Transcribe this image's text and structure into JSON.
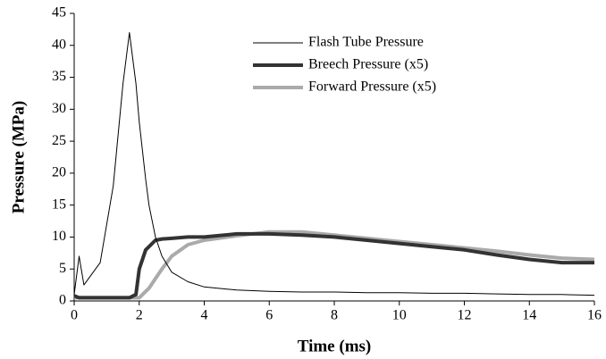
{
  "chart_data": {
    "type": "line",
    "x_label": "Time (ms)",
    "y_label": "Pressure (MPa)",
    "x": [
      0,
      0.15,
      0.3,
      0.8,
      1.2,
      1.5,
      1.7,
      1.9,
      2.0,
      2.2,
      2.3,
      2.5,
      2.7,
      3,
      3.5,
      4,
      5,
      6,
      7,
      8,
      9,
      10,
      11,
      12,
      13,
      14,
      15,
      16
    ],
    "series": [
      {
        "name": "Flash Tube Pressure",
        "color": "#000000",
        "width": 1,
        "values": [
          1,
          7,
          2.5,
          6,
          18,
          34,
          42,
          34,
          28,
          19,
          15,
          10,
          7,
          4.5,
          3,
          2.2,
          1.7,
          1.5,
          1.4,
          1.4,
          1.3,
          1.3,
          1.2,
          1.2,
          1.1,
          1,
          1,
          0.9
        ]
      },
      {
        "name": "Breech Pressure (x5)",
        "color": "#333333",
        "width": 4,
        "values": [
          0.8,
          0.5,
          0.5,
          0.5,
          0.5,
          0.5,
          0.5,
          1,
          5,
          8,
          8.5,
          9.5,
          9.7,
          9.8,
          10,
          10,
          10.5,
          10.5,
          10.3,
          10,
          9.5,
          9,
          8.5,
          8,
          7.2,
          6.5,
          6,
          6
        ]
      },
      {
        "name": "Forward Pressure (x5)",
        "color": "#aaaaaa",
        "width": 4,
        "values": [
          0.5,
          0.5,
          0.5,
          0.5,
          0.5,
          0.5,
          0.5,
          0.5,
          0.5,
          1.5,
          2,
          3.5,
          5,
          7,
          8.8,
          9.5,
          10.2,
          10.8,
          10.8,
          10.3,
          9.8,
          9.3,
          8.8,
          8.3,
          7.8,
          7.2,
          6.7,
          6.5
        ]
      }
    ],
    "xlim": [
      0,
      16
    ],
    "xticks": [
      0,
      2,
      4,
      6,
      8,
      10,
      12,
      14,
      16
    ],
    "ylim": [
      0,
      45
    ],
    "yticks": [
      0,
      5,
      10,
      15,
      20,
      25,
      30,
      35,
      40,
      45
    ],
    "grid": false,
    "legend_position": "upper center"
  }
}
